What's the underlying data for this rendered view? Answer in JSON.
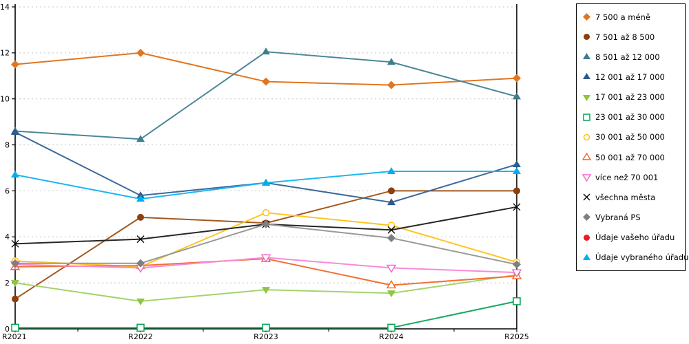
{
  "chart_data": {
    "type": "line",
    "title": "",
    "xlabel": "",
    "ylabel": "",
    "categories": [
      "R2021",
      "R2022",
      "R2023",
      "R2024",
      "R2025"
    ],
    "ylim": [
      0,
      14
    ],
    "ytick_step": 2,
    "y_tick_labels": [
      "0",
      "2",
      "4",
      "6",
      "8",
      "10",
      "12",
      "14"
    ],
    "grid": "horizontal-dashed",
    "legend_position": "right",
    "series": [
      {
        "name": "7 500 a méně",
        "marker": "diamond",
        "color": "#E2751E",
        "line_color": "#E2751E",
        "values": [
          11.5,
          12.0,
          10.75,
          10.6,
          10.9
        ]
      },
      {
        "name": "7 501 až 8 500",
        "marker": "circle",
        "color": "#8F3E10",
        "line_color": "#A2581F",
        "values": [
          1.3,
          4.85,
          4.6,
          6.0,
          6.0
        ]
      },
      {
        "name": "8 501 až 12 000",
        "marker": "triangle",
        "color": "#3D7D8E",
        "line_color": "#4A8799",
        "values": [
          8.6,
          8.25,
          12.05,
          11.6,
          10.1
        ]
      },
      {
        "name": "12 001 až 17 000",
        "marker": "triangle",
        "color": "#2F5B8C",
        "line_color": "#3E6A9B",
        "values": [
          8.55,
          5.8,
          6.35,
          5.5,
          7.15
        ]
      },
      {
        "name": "17 001 až 23 000",
        "marker": "triangle-down",
        "color": "#8DC63F",
        "line_color": "#A3D36B",
        "values": [
          2.0,
          1.2,
          1.7,
          1.55,
          2.35
        ]
      },
      {
        "name": "23 001 až 30 000",
        "marker": "square-open",
        "color": "#00A651",
        "line_color": "#17A85E",
        "values": [
          0.05,
          0.05,
          0.05,
          0.05,
          1.2
        ]
      },
      {
        "name": "30 001 až 50 000",
        "marker": "circle-open",
        "color": "#FFC20E",
        "line_color": "#FFC41E",
        "values": [
          2.95,
          2.7,
          5.05,
          4.5,
          2.9
        ]
      },
      {
        "name": "50 001 až 70 000",
        "marker": "triangle-open",
        "color": "#F26522",
        "line_color": "#F37032",
        "values": [
          2.7,
          2.75,
          3.05,
          1.9,
          2.3
        ]
      },
      {
        "name": "více než 70 001",
        "marker": "triangle-down-open",
        "color": "#F464CE",
        "line_color": "#F78BD9",
        "values": [
          2.8,
          2.65,
          3.1,
          2.65,
          2.45
        ]
      },
      {
        "name": "všechna města",
        "marker": "x",
        "color": "#000000",
        "line_color": "#262626",
        "values": [
          3.7,
          3.9,
          4.55,
          4.3,
          5.3
        ]
      },
      {
        "name": "Vybraná PS",
        "marker": "diamond",
        "color": "#7F7F7F",
        "line_color": "#999999",
        "values": [
          2.85,
          2.85,
          4.55,
          3.95,
          2.8
        ]
      },
      {
        "name": "Údaje vašeho úřadu",
        "marker": "circle",
        "color": "#EC1C24",
        "line_color": "#EC1C24",
        "values": []
      },
      {
        "name": "Údaje vybraného úřadu",
        "marker": "triangle",
        "color": "#00AEEF",
        "line_color": "#1BB6F1",
        "values": [
          6.7,
          5.65,
          6.35,
          6.85,
          6.85
        ]
      }
    ]
  }
}
